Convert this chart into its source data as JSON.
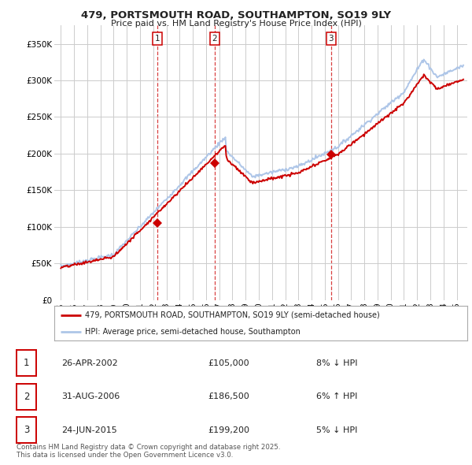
{
  "title_line1": "479, PORTSMOUTH ROAD, SOUTHAMPTON, SO19 9LY",
  "title_line2": "Price paid vs. HM Land Registry's House Price Index (HPI)",
  "yticks": [
    0,
    50000,
    100000,
    150000,
    200000,
    250000,
    300000,
    350000
  ],
  "ytick_labels": [
    "£0",
    "£50K",
    "£100K",
    "£150K",
    "£200K",
    "£250K",
    "£300K",
    "£350K"
  ],
  "xlim_start": 1994.5,
  "xlim_end": 2025.8,
  "ylim": [
    0,
    375000
  ],
  "xticks": [
    1995,
    1996,
    1997,
    1998,
    1999,
    2000,
    2001,
    2002,
    2003,
    2004,
    2005,
    2006,
    2007,
    2008,
    2009,
    2010,
    2011,
    2012,
    2013,
    2014,
    2015,
    2016,
    2017,
    2018,
    2019,
    2020,
    2021,
    2022,
    2023,
    2024,
    2025
  ],
  "sale_year_floats": [
    2002.32,
    2006.66,
    2015.48
  ],
  "sale_prices": [
    105000,
    186500,
    199200
  ],
  "sale_labels": [
    "1",
    "2",
    "3"
  ],
  "legend_line1": "479, PORTSMOUTH ROAD, SOUTHAMPTON, SO19 9LY (semi-detached house)",
  "legend_line2": "HPI: Average price, semi-detached house, Southampton",
  "table_data": [
    [
      "1",
      "26-APR-2002",
      "£105,000",
      "8% ↓ HPI"
    ],
    [
      "2",
      "31-AUG-2006",
      "£186,500",
      "6% ↑ HPI"
    ],
    [
      "3",
      "24-JUN-2015",
      "£199,200",
      "5% ↓ HPI"
    ]
  ],
  "footnote": "Contains HM Land Registry data © Crown copyright and database right 2025.\nThis data is licensed under the Open Government Licence v3.0.",
  "hpi_color": "#aec6e8",
  "price_color": "#cc0000",
  "grid_color": "#cccccc",
  "background_color": "#ffffff",
  "vline_color": "#cc0000"
}
